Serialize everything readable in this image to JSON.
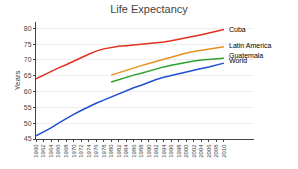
{
  "chart_data": {
    "type": "line",
    "title": "Life Expectancy",
    "ylabel": "Years",
    "x": [
      1960,
      1962,
      1964,
      1966,
      1968,
      1970,
      1972,
      1974,
      1976,
      1978,
      1980,
      1982,
      1984,
      1986,
      1988,
      1990,
      1992,
      1994,
      1996,
      1998,
      2000,
      2002,
      2004,
      2006,
      2008,
      2010
    ],
    "series": [
      {
        "name": "Cuba",
        "color": "#e03020",
        "values": [
          64.0,
          65.2,
          66.5,
          67.5,
          68.5,
          69.5,
          70.7,
          71.8,
          72.8,
          73.5,
          74.0,
          74.3,
          74.5,
          74.7,
          75.0,
          75.2,
          75.4,
          75.7,
          76.1,
          76.5,
          77.0,
          77.5,
          78.0,
          78.5,
          79.0,
          79.6
        ]
      },
      {
        "name": "Latin America",
        "color": "#e89020",
        "values": [
          null,
          null,
          null,
          null,
          null,
          null,
          null,
          null,
          null,
          null,
          65.2,
          66.0,
          66.8,
          67.5,
          68.2,
          68.9,
          69.6,
          70.3,
          71.0,
          71.7,
          72.2,
          72.7,
          73.1,
          73.5,
          73.8,
          74.2
        ]
      },
      {
        "name": "Guatemala",
        "color": "#30a030",
        "values": [
          null,
          null,
          null,
          null,
          null,
          null,
          null,
          null,
          null,
          null,
          63.0,
          63.8,
          64.5,
          65.2,
          65.8,
          66.5,
          67.2,
          67.8,
          68.3,
          68.8,
          69.3,
          69.7,
          70.0,
          70.2,
          70.4,
          70.5
        ]
      },
      {
        "name": "World",
        "color": "#2050d0",
        "values": [
          46.0,
          47.2,
          48.5,
          50.0,
          51.5,
          52.8,
          54.0,
          55.2,
          56.3,
          57.3,
          58.3,
          59.3,
          60.3,
          61.2,
          62.0,
          63.0,
          63.8,
          64.5,
          65.1,
          65.7,
          66.2,
          66.8,
          67.3,
          67.8,
          68.4,
          69.0
        ]
      }
    ],
    "annotations": [
      {
        "text": "Cuba",
        "x": 2010,
        "y": 79.6
      },
      {
        "text": "Latin America",
        "x": 2010,
        "y": 74.7
      },
      {
        "text": "Guatemala",
        "x": 2010,
        "y": 71.5
      },
      {
        "text": "World",
        "x": 2010,
        "y": 69.8
      }
    ],
    "xlim": [
      1960,
      2018
    ],
    "xticks": [
      1960,
      1962,
      1964,
      1966,
      1968,
      1970,
      1972,
      1974,
      1976,
      1978,
      1980,
      1982,
      1984,
      1986,
      1988,
      1990,
      1992,
      1994,
      1996,
      1998,
      2000,
      2002,
      2004,
      2006,
      2008,
      2010
    ],
    "ylim": [
      45,
      82
    ],
    "yticks": [
      45,
      50,
      55,
      60,
      65,
      70,
      75,
      80
    ],
    "grid": "y"
  }
}
